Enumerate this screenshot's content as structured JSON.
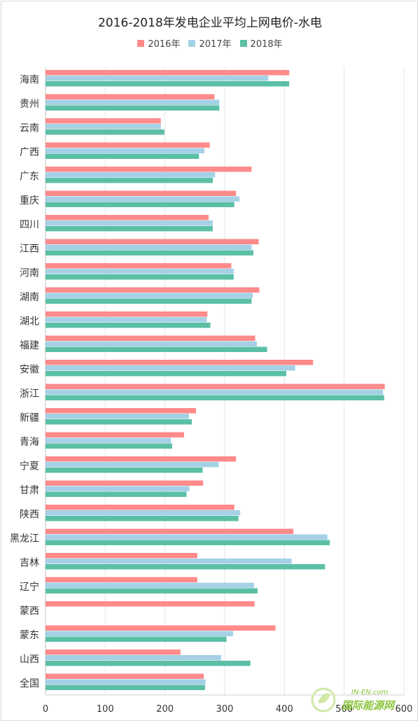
{
  "chart_data": {
    "type": "bar",
    "orientation": "horizontal",
    "title": "2016-2018年发电企业平均上网电价-水电",
    "categories": [
      "海南",
      "贵州",
      "云南",
      "广西",
      "广东",
      "重庆",
      "四川",
      "江西",
      "河南",
      "湖南",
      "湖北",
      "福建",
      "安徽",
      "浙江",
      "新疆",
      "青海",
      "宁夏",
      "甘肃",
      "陕西",
      "黑龙江",
      "吉林",
      "辽宁",
      "蒙西",
      "蒙东",
      "山西",
      "全国"
    ],
    "series": [
      {
        "name": "2016年",
        "color": "#ff8a8a",
        "values": [
          408,
          283,
          193,
          275,
          345,
          319,
          273,
          357,
          311,
          358,
          271,
          351,
          448,
          568,
          252,
          232,
          319,
          264,
          316,
          415,
          254,
          254,
          350,
          385,
          226,
          265
        ]
      },
      {
        "name": "2017年",
        "color": "#a5d1e6",
        "values": [
          373,
          291,
          193,
          266,
          284,
          325,
          280,
          345,
          315,
          347,
          270,
          354,
          418,
          565,
          240,
          210,
          290,
          241,
          326,
          472,
          412,
          349,
          null,
          314,
          294,
          268
        ]
      },
      {
        "name": "2018年",
        "color": "#5bbfa6",
        "values": [
          408,
          291,
          199,
          257,
          280,
          316,
          280,
          348,
          315,
          345,
          276,
          371,
          403,
          567,
          245,
          212,
          263,
          236,
          323,
          476,
          468,
          355,
          null,
          303,
          343,
          267
        ]
      }
    ],
    "xlim": [
      0,
      600
    ],
    "xticks": [
      0,
      100,
      200,
      300,
      400,
      500,
      600
    ],
    "legend_position": "top"
  },
  "watermark": {
    "small": "IN-EN.com",
    "big": "国际能源网"
  }
}
